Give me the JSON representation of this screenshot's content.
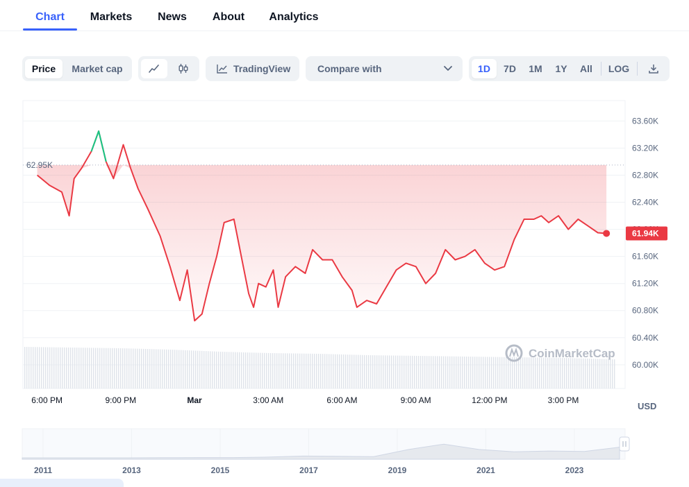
{
  "tabs": [
    {
      "label": "Chart",
      "active": true
    },
    {
      "label": "Markets",
      "active": false
    },
    {
      "label": "News",
      "active": false
    },
    {
      "label": "About",
      "active": false
    },
    {
      "label": "Analytics",
      "active": false
    }
  ],
  "toolbar": {
    "metric_toggle": [
      "Price",
      "Market cap"
    ],
    "selected_metric": "Price",
    "chart_style_icons": [
      "line-chart-icon",
      "candlestick-icon"
    ],
    "selected_style": "line-chart-icon",
    "tradingview_label": "TradingView",
    "compare_label": "Compare with",
    "ranges": [
      "1D",
      "7D",
      "1M",
      "1Y",
      "All"
    ],
    "selected_range": "1D",
    "log_label": "LOG",
    "download_icon": "download-icon"
  },
  "colors": {
    "accent": "#3861fb",
    "down": "#ea3943",
    "up": "#16c784",
    "muted": "#58667e"
  },
  "chart_data": {
    "type": "line",
    "ylabel": "USD",
    "ylim": [
      59650,
      63850
    ],
    "y_ticks": [
      60000,
      60400,
      60800,
      61200,
      61600,
      62000,
      62400,
      62800,
      63200,
      63600
    ],
    "y_tick_labels": [
      "60.00K",
      "60.40K",
      "60.80K",
      "61.20K",
      "61.60K",
      "62.00K",
      "62.40K",
      "62.80K",
      "63.20K",
      "63.60K"
    ],
    "x_ticks": [
      {
        "hour": 0,
        "label": "6:00 PM"
      },
      {
        "hour": 3,
        "label": "9:00 PM"
      },
      {
        "hour": 6,
        "label": "Mar"
      },
      {
        "hour": 9,
        "label": "3:00 AM"
      },
      {
        "hour": 12,
        "label": "6:00 AM"
      },
      {
        "hour": 15,
        "label": "9:00 AM"
      },
      {
        "hour": 18,
        "label": "12:00 PM"
      },
      {
        "hour": 21,
        "label": "3:00 PM"
      }
    ],
    "reference_value": 62950,
    "reference_label": "62.95K",
    "current_value": 61940,
    "current_label": "61.94K",
    "series": [
      {
        "hours": [
          0,
          0.5,
          1,
          1.3,
          1.5,
          1.8,
          2.2,
          2.5,
          2.8,
          3.1,
          3.5,
          3.8,
          4.1,
          4.5,
          5.0,
          5.4,
          5.8,
          6.1,
          6.4,
          6.7,
          7.0,
          7.3,
          7.6,
          8.0,
          8.3,
          8.6,
          8.8,
          9.0,
          9.3,
          9.6,
          9.8,
          10.1,
          10.5,
          10.9,
          11.2,
          11.6,
          12.0,
          12.4,
          12.8,
          13.0,
          13.4,
          13.8,
          14.2,
          14.6,
          15.0,
          15.4,
          15.8,
          16.2,
          16.6,
          17.0,
          17.4,
          17.8,
          18.2,
          18.6,
          19.0,
          19.4,
          19.8,
          20.2,
          20.5,
          20.8,
          21.2,
          21.6,
          22.0,
          22.4,
          22.8,
          23.15
        ],
        "values": [
          62800,
          62650,
          62550,
          62200,
          62750,
          62900,
          63150,
          63450,
          63000,
          62750,
          63250,
          62900,
          62600,
          62300,
          61900,
          61450,
          60950,
          61400,
          60650,
          60750,
          61200,
          61600,
          62100,
          62150,
          61600,
          61050,
          60850,
          61200,
          61150,
          61400,
          60850,
          61300,
          61450,
          61350,
          61700,
          61550,
          61550,
          61300,
          61100,
          60850,
          60950,
          60900,
          61150,
          61400,
          61500,
          61450,
          61200,
          61350,
          61700,
          61550,
          61600,
          61700,
          61500,
          61400,
          61450,
          61850,
          62150,
          62150,
          62200,
          62100,
          62200,
          62000,
          62150,
          62050,
          61950,
          61940
        ],
        "volume_level": [
          0.6,
          0.59,
          0.58,
          0.56,
          0.53,
          0.51,
          0.5,
          0.48,
          0.47,
          0.46,
          0.45,
          0.44,
          0.42
        ]
      }
    ]
  },
  "navigator": {
    "year_labels": [
      "2011",
      "2013",
      "2015",
      "2017",
      "2019",
      "2021",
      "2023"
    ],
    "history_values": [
      0,
      0,
      0,
      0,
      0.01,
      0.02,
      0.02,
      0.05,
      0.12,
      0.1,
      0.08,
      0.55,
      0.9,
      0.55,
      0.4,
      0.45,
      0.42,
      0.7
    ]
  },
  "watermark": "CoinMarketCap"
}
